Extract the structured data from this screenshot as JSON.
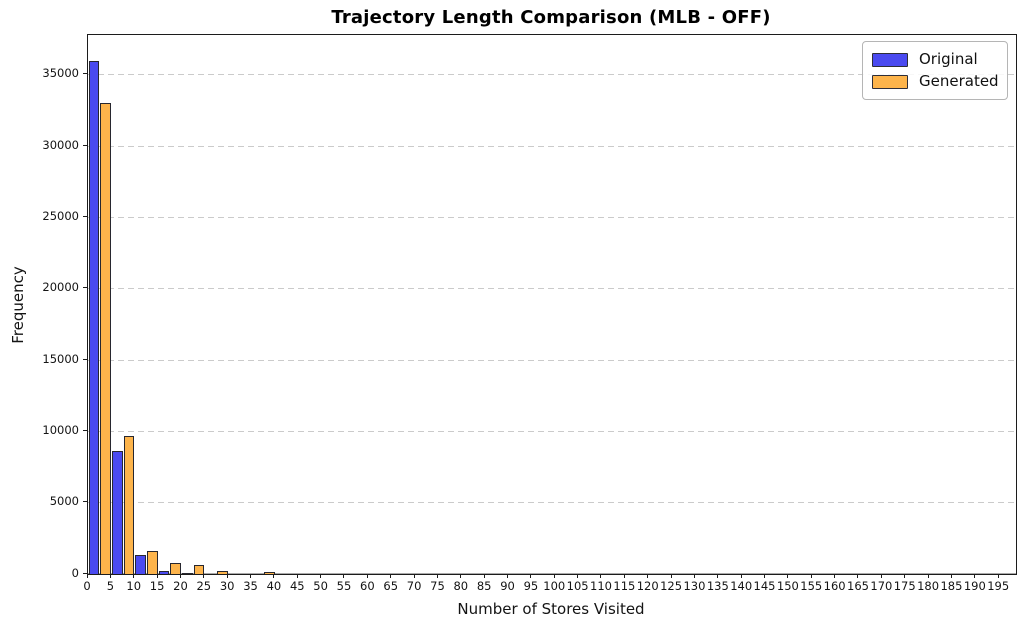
{
  "chart_data": {
    "type": "bar",
    "subtype": "grouped-histogram",
    "title": "Trajectory Length Comparison (MLB - OFF)",
    "xlabel": "Number of Stores Visited",
    "ylabel": "Frequency",
    "bin_width": 5,
    "bin_starts": [
      0,
      5,
      10,
      15,
      20,
      25,
      30,
      35,
      40,
      45,
      50,
      55,
      60,
      65,
      70,
      75,
      80,
      85,
      90,
      95,
      100,
      105,
      110,
      115,
      120,
      125,
      130,
      135,
      140,
      145,
      150,
      155,
      160,
      165,
      170,
      175,
      180,
      185,
      190,
      195
    ],
    "series": [
      {
        "name": "Original",
        "color": "#4A4AF0",
        "edge_color": "#27272f",
        "values": [
          36000,
          8600,
          1350,
          240,
          80,
          0,
          0,
          0,
          0,
          0,
          0,
          0,
          0,
          0,
          0,
          0,
          0,
          0,
          0,
          0,
          0,
          0,
          0,
          0,
          0,
          0,
          0,
          0,
          0,
          0,
          0,
          0,
          0,
          0,
          0,
          0,
          0,
          0,
          0,
          0
        ]
      },
      {
        "name": "Generated",
        "color": "#FDB44B",
        "edge_color": "#27272f",
        "values": [
          33000,
          9700,
          1600,
          800,
          600,
          220,
          0,
          150,
          0,
          0,
          0,
          0,
          0,
          0,
          0,
          0,
          0,
          0,
          0,
          0,
          0,
          0,
          0,
          0,
          0,
          0,
          0,
          0,
          0,
          0,
          0,
          0,
          0,
          0,
          0,
          0,
          0,
          0,
          0,
          0
        ]
      }
    ],
    "xtick_labels": [
      "0",
      "5",
      "10",
      "15",
      "20",
      "25",
      "30",
      "35",
      "40",
      "45",
      "50",
      "55",
      "60",
      "65",
      "70",
      "75",
      "80",
      "85",
      "90",
      "95",
      "100",
      "105",
      "110",
      "115",
      "120",
      "125",
      "130",
      "135",
      "140",
      "145",
      "150",
      "155",
      "160",
      "165",
      "170",
      "175",
      "180",
      "185",
      "190",
      "195"
    ],
    "yticks": [
      0,
      5000,
      10000,
      15000,
      20000,
      25000,
      30000,
      35000
    ],
    "ylim": [
      0,
      37800
    ],
    "xlim": [
      0,
      198.6
    ],
    "grid": {
      "axis": "y",
      "style": "dashed",
      "color": "#cbcbcb"
    },
    "legend": {
      "position": "upper right",
      "items": [
        "Original",
        "Generated"
      ]
    }
  }
}
